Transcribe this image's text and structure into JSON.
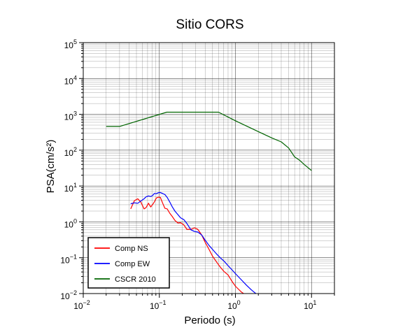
{
  "chart_data": {
    "type": "line",
    "title": "Sitio CORS",
    "xlabel": "Periodo (s)",
    "ylabel": "PSA(cm/s²)",
    "xscale": "log",
    "yscale": "log",
    "xlim": [
      0.01,
      20
    ],
    "ylim": [
      0.01,
      100000
    ],
    "grid": true,
    "legend_position": "bottom-left",
    "x_ticks": [
      {
        "value": 0.01,
        "base": "10",
        "exp": "−2"
      },
      {
        "value": 0.1,
        "base": "10",
        "exp": "−1"
      },
      {
        "value": 1,
        "base": "10",
        "exp": "0"
      },
      {
        "value": 10,
        "base": "10",
        "exp": "1"
      }
    ],
    "y_ticks": [
      {
        "value": 0.01,
        "base": "10",
        "exp": "−2"
      },
      {
        "value": 0.1,
        "base": "10",
        "exp": "−1"
      },
      {
        "value": 1,
        "base": "10",
        "exp": "0"
      },
      {
        "value": 10,
        "base": "10",
        "exp": "1"
      },
      {
        "value": 100,
        "base": "10",
        "exp": "2"
      },
      {
        "value": 1000,
        "base": "10",
        "exp": "3"
      },
      {
        "value": 10000,
        "base": "10",
        "exp": "4"
      },
      {
        "value": 100000,
        "base": "10",
        "exp": "5"
      }
    ],
    "series": [
      {
        "name": "Comp NS",
        "color": "#ff0000",
        "x": [
          0.042,
          0.047,
          0.052,
          0.057,
          0.063,
          0.067,
          0.072,
          0.077,
          0.082,
          0.086,
          0.091,
          0.097,
          0.103,
          0.11,
          0.118,
          0.127,
          0.137,
          0.148,
          0.16,
          0.175,
          0.19,
          0.21,
          0.23,
          0.26,
          0.29,
          0.32,
          0.36,
          0.4,
          0.45,
          0.5,
          0.56,
          0.63,
          0.71,
          0.8,
          0.9,
          1.0,
          1.2,
          1.4,
          1.6
        ],
        "y": [
          2.3,
          3.9,
          4.4,
          3.6,
          2.3,
          2.5,
          3.3,
          2.6,
          3.1,
          3.6,
          4.6,
          4.9,
          4.8,
          3.4,
          2.4,
          2.3,
          1.75,
          1.4,
          1.1,
          0.93,
          0.95,
          0.82,
          0.62,
          0.62,
          0.68,
          0.62,
          0.43,
          0.27,
          0.17,
          0.11,
          0.078,
          0.055,
          0.041,
          0.033,
          0.022,
          0.016,
          0.011,
          0.0088,
          0.0085
        ]
      },
      {
        "name": "Comp EW",
        "color": "#0000ff",
        "x": [
          0.042,
          0.047,
          0.052,
          0.057,
          0.063,
          0.067,
          0.072,
          0.077,
          0.082,
          0.086,
          0.091,
          0.097,
          0.103,
          0.11,
          0.118,
          0.127,
          0.137,
          0.148,
          0.16,
          0.175,
          0.19,
          0.21,
          0.23,
          0.26,
          0.29,
          0.32,
          0.36,
          0.4,
          0.45,
          0.5,
          0.56,
          0.63,
          0.71,
          0.8,
          0.9,
          1.0,
          1.2,
          1.4,
          1.6,
          1.8,
          2.0
        ],
        "y": [
          3.2,
          3.4,
          3.3,
          3.8,
          4.4,
          5.0,
          5.3,
          5.1,
          5.5,
          6.2,
          6.1,
          6.5,
          6.6,
          6.2,
          5.8,
          4.8,
          3.6,
          2.6,
          2.0,
          1.6,
          1.3,
          1.15,
          0.9,
          0.6,
          0.54,
          0.52,
          0.43,
          0.31,
          0.22,
          0.17,
          0.13,
          0.1,
          0.08,
          0.06,
          0.046,
          0.036,
          0.024,
          0.017,
          0.013,
          0.0105,
          0.0088
        ]
      },
      {
        "name": "CSCR 2010",
        "color": "#006400",
        "x": [
          0.02,
          0.03,
          0.125,
          0.6,
          1.0,
          2.0,
          3.0,
          4.0,
          5.0,
          6.0,
          7.0,
          8.0,
          10.0
        ],
        "y": [
          460,
          460,
          1150,
          1150,
          660,
          330,
          220,
          170,
          115,
          65,
          52,
          40,
          27
        ]
      }
    ]
  }
}
